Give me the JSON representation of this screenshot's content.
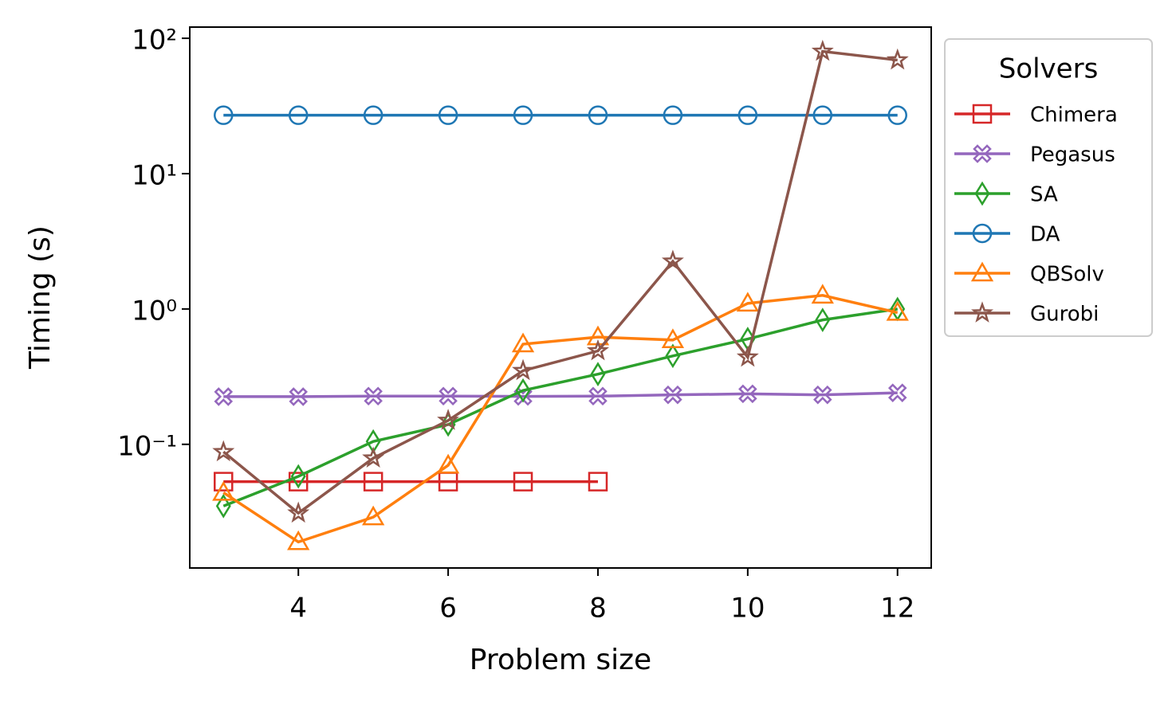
{
  "chart_data": {
    "type": "line",
    "x_label": "Problem size",
    "y_label": "Timing (s)",
    "x": [
      3,
      4,
      5,
      6,
      7,
      8,
      9,
      10,
      11,
      12
    ],
    "xlim": [
      2.55,
      12.45
    ],
    "xticks": [
      4,
      6,
      8,
      10,
      12
    ],
    "ylim": [
      0.0122,
      121
    ],
    "y_log": true,
    "yticks": [
      {
        "value": 0.1,
        "label": "10⁻¹"
      },
      {
        "value": 1,
        "label": "10⁰"
      },
      {
        "value": 10,
        "label": "10¹"
      },
      {
        "value": 100,
        "label": "10²"
      }
    ],
    "legend_title": "Solvers",
    "legend_position": "outside-upper-right",
    "series": [
      {
        "name": "Chimera",
        "color": "#d62728",
        "marker": "square",
        "values": [
          0.053,
          0.053,
          0.053,
          0.053,
          0.053,
          0.053,
          null,
          null,
          null,
          null
        ]
      },
      {
        "name": "Pegasus",
        "color": "#9467bd",
        "marker": "x",
        "values": [
          0.225,
          0.225,
          0.227,
          0.227,
          0.226,
          0.227,
          0.232,
          0.236,
          0.232,
          0.24
        ]
      },
      {
        "name": "SA",
        "color": "#2ca02c",
        "marker": "diamond",
        "values": [
          0.035,
          0.058,
          0.105,
          0.14,
          0.25,
          0.33,
          0.45,
          0.6,
          0.83,
          1.0
        ]
      },
      {
        "name": "DA",
        "color": "#1f77b4",
        "marker": "circle",
        "values": [
          27,
          27,
          27,
          27,
          27,
          27,
          27,
          27,
          27,
          27
        ]
      },
      {
        "name": "QBSolv",
        "color": "#ff7f0e",
        "marker": "triangle",
        "values": [
          0.044,
          0.019,
          0.029,
          0.07,
          0.55,
          0.62,
          0.59,
          1.1,
          1.26,
          0.94
        ]
      },
      {
        "name": "Gurobi",
        "color": "#8c564b",
        "marker": "star",
        "values": [
          0.088,
          0.031,
          0.079,
          0.15,
          0.35,
          0.49,
          2.25,
          0.44,
          80,
          69
        ]
      }
    ]
  }
}
